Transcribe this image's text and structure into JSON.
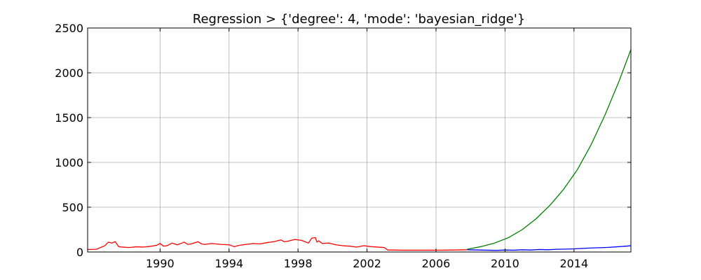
{
  "chart_data": {
    "type": "line",
    "title": "Regression > {'degree': 4, 'mode': 'bayesian_ridge'}",
    "xlabel": "",
    "ylabel": "",
    "xlim": [
      1985.8,
      2017.3
    ],
    "ylim": [
      0,
      2500
    ],
    "grid": true,
    "x_ticks": [
      1990,
      1994,
      1998,
      2002,
      2006,
      2010,
      2014
    ],
    "x_tick_labels": [
      "1990",
      "1994",
      "1998",
      "2002",
      "2006",
      "2010",
      "2014"
    ],
    "y_ticks": [
      0,
      500,
      1000,
      1500,
      2000,
      2500
    ],
    "y_tick_labels": [
      "0",
      "500",
      "1000",
      "1500",
      "2000",
      "2500"
    ],
    "series": [
      {
        "color": "#ff0000",
        "x": [
          1985.8,
          1986.3,
          1986.8,
          1987.0,
          1987.2,
          1987.4,
          1987.6,
          1987.8,
          1988.2,
          1988.6,
          1989.0,
          1989.4,
          1989.8,
          1990.0,
          1990.2,
          1990.4,
          1990.7,
          1991.0,
          1991.4,
          1991.6,
          1991.8,
          1992.2,
          1992.4,
          1992.6,
          1993.0,
          1993.5,
          1994.0,
          1994.3,
          1994.6,
          1995.0,
          1995.4,
          1995.8,
          1996.2,
          1996.6,
          1997.0,
          1997.2,
          1997.4,
          1997.8,
          1998.2,
          1998.6,
          1998.8,
          1999.0,
          1999.1,
          1999.2,
          1999.4,
          1999.8,
          2000.2,
          2000.6,
          2001.0,
          2001.4,
          2001.8,
          2002.2,
          2002.6,
          2003.0,
          2003.2,
          2003.6,
          2004.0,
          2005.0,
          2006.0,
          2007.0,
          2007.8
        ],
        "y": [
          28,
          30,
          70,
          110,
          100,
          115,
          60,
          55,
          50,
          58,
          55,
          62,
          75,
          95,
          65,
          70,
          100,
          80,
          110,
          85,
          90,
          115,
          90,
          85,
          95,
          85,
          80,
          60,
          75,
          85,
          95,
          90,
          105,
          115,
          135,
          115,
          120,
          140,
          130,
          100,
          155,
          160,
          110,
          125,
          95,
          100,
          80,
          70,
          65,
          55,
          70,
          60,
          55,
          50,
          22,
          22,
          20,
          20,
          20,
          22,
          25
        ]
      },
      {
        "color": "#0000ff",
        "x": [
          2007.8,
          2008.5,
          2009.0,
          2009.5,
          2010.0,
          2010.5,
          2011.0,
          2011.5,
          2012.0,
          2012.5,
          2013.0,
          2013.5,
          2014.0,
          2014.5,
          2015.0,
          2015.5,
          2016.0,
          2016.5,
          2017.0,
          2017.3
        ],
        "y": [
          25,
          22,
          20,
          18,
          22,
          20,
          25,
          22,
          28,
          25,
          30,
          32,
          35,
          40,
          45,
          48,
          52,
          58,
          65,
          70
        ]
      },
      {
        "color": "#008000",
        "x": [
          2007.8,
          2008.6,
          2009.4,
          2010.2,
          2011.0,
          2011.8,
          2012.6,
          2013.4,
          2014.2,
          2015.0,
          2015.8,
          2016.6,
          2017.3
        ],
        "y": [
          30,
          60,
          100,
          160,
          250,
          370,
          520,
          700,
          920,
          1200,
          1530,
          1900,
          2260
        ]
      }
    ]
  }
}
